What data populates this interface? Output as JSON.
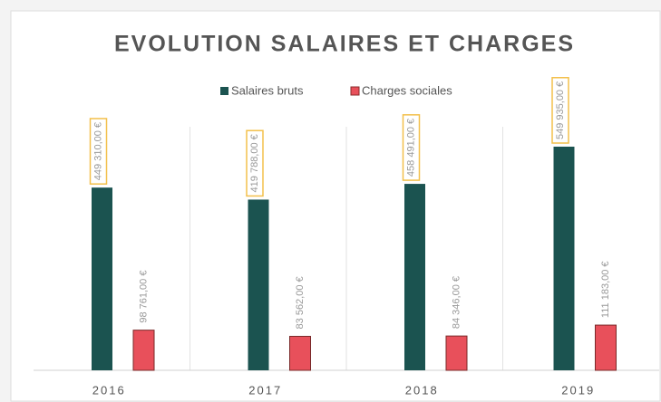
{
  "chart_data": {
    "type": "bar",
    "title": "EVOLUTION SALAIRES ET CHARGES",
    "categories": [
      "2016",
      "2017",
      "2018",
      "2019"
    ],
    "series": [
      {
        "name": "Salaires bruts",
        "color": "#1b5350",
        "values": [
          449310,
          419788,
          458491,
          549935
        ],
        "value_labels": [
          "449 310,00 €",
          "419 788,00 €",
          "458 491,00 €",
          "549 935,00 €"
        ]
      },
      {
        "name": "Charges sociales",
        "color": "#e8505b",
        "values": [
          98761,
          83562,
          84346,
          111183
        ],
        "value_labels": [
          "98 761,00 €",
          "83 562,00 €",
          "84 346,00 €",
          "111 183,00 €"
        ]
      }
    ],
    "legend": "top"
  }
}
